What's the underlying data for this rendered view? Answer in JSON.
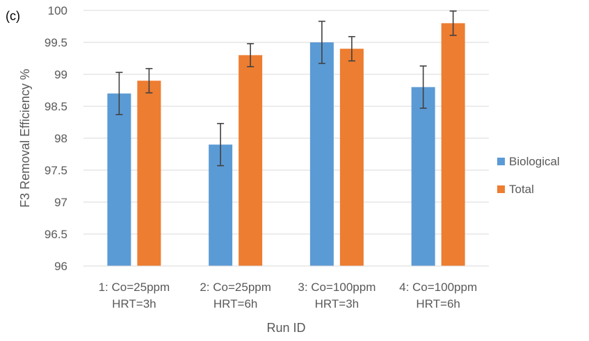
{
  "panel_label": "(c)",
  "chart_data": {
    "type": "bar",
    "title": "",
    "xlabel": "Run ID",
    "ylabel": "F3 Removal Efficiency %",
    "ylim": [
      96,
      100
    ],
    "yticks": [
      "96",
      "96.5",
      "97",
      "97.5",
      "98",
      "98.5",
      "99",
      "99.5",
      "100"
    ],
    "grid": true,
    "legend_position": "right",
    "categories": [
      [
        "1: Co=25ppm",
        "HRT=3h"
      ],
      [
        "2: Co=25ppm",
        "HRT=6h"
      ],
      [
        "3: Co=100ppm",
        "HRT=3h"
      ],
      [
        "4: Co=100ppm",
        "HRT=6h"
      ]
    ],
    "series": [
      {
        "name": "Biological",
        "color": "#5B9BD5",
        "values": [
          98.7,
          97.9,
          99.5,
          98.8
        ],
        "error": [
          0.33,
          0.33,
          0.33,
          0.33
        ]
      },
      {
        "name": "Total",
        "color": "#ED7D31",
        "values": [
          98.9,
          99.3,
          99.4,
          99.8
        ],
        "error": [
          0.19,
          0.18,
          0.19,
          0.19
        ]
      }
    ]
  }
}
